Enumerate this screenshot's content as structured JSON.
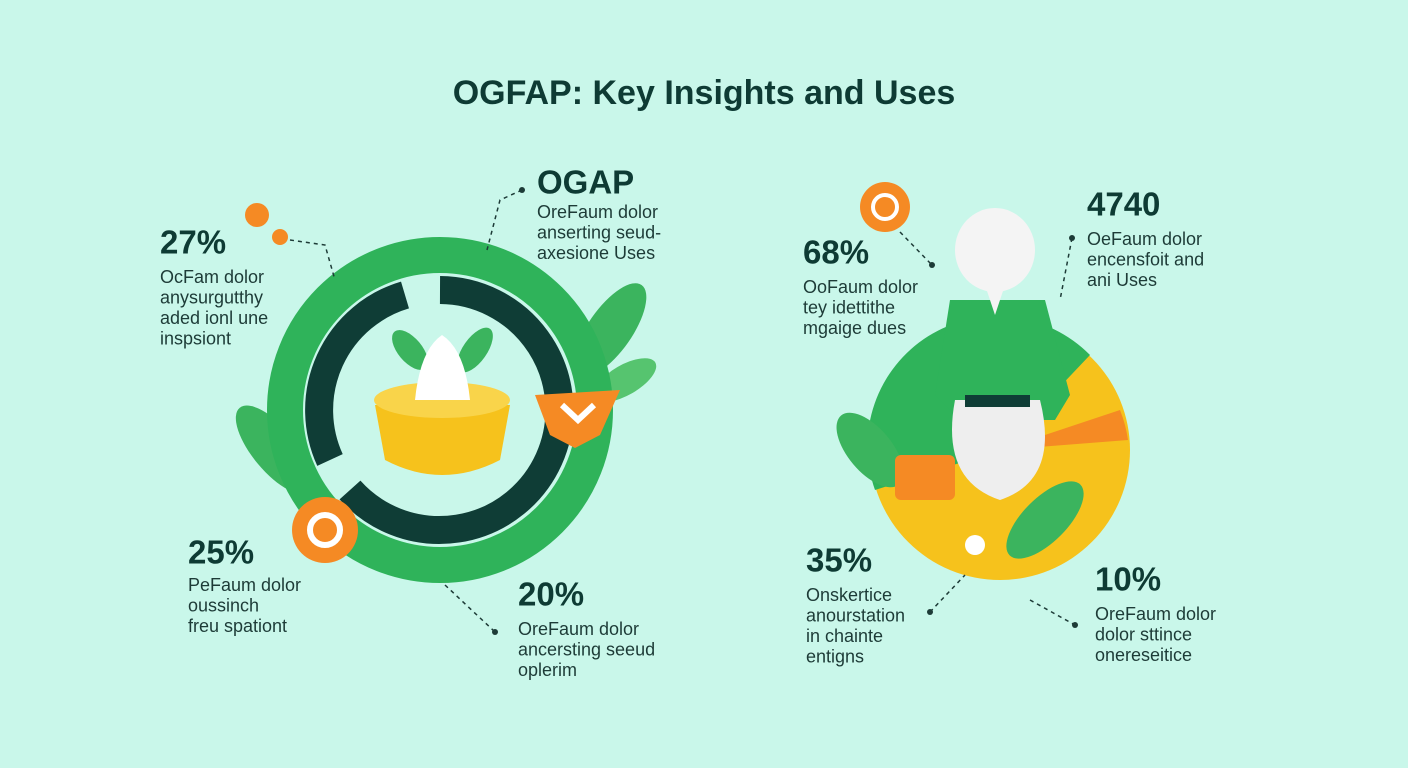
{
  "title": "OGFAP: Key Insights and Uses",
  "left": {
    "callouts": [
      {
        "value": "27%",
        "lines": [
          "OcFam dolor",
          "anysurgutthy",
          "aded ionl une",
          "inspsiont"
        ]
      },
      {
        "value": "OGAP",
        "lines": [
          "OreFaum dolor",
          "anserting seud-",
          "axesione Uses"
        ]
      },
      {
        "value": "25%",
        "lines": [
          "PeFaum dolor",
          "oussinch",
          "freu spationt"
        ]
      },
      {
        "value": "20%",
        "lines": [
          "OreFaum dolor",
          "ancersting seeud",
          "oplerim"
        ]
      }
    ]
  },
  "right": {
    "callouts": [
      {
        "value": "68%",
        "lines": [
          "OoFaum dolor",
          "tey idettithe",
          "mgaige dues"
        ]
      },
      {
        "value": "4740",
        "lines": [
          "OeFaum dolor",
          "encensfoit and",
          "ani Uses"
        ]
      },
      {
        "value": "35%",
        "lines": [
          "Onskertice",
          "anourstation",
          "in chainte",
          "entigns"
        ]
      },
      {
        "value": "10%",
        "lines": [
          "OreFaum dolor",
          "dolor sttince",
          "onereseitice"
        ]
      }
    ]
  }
}
